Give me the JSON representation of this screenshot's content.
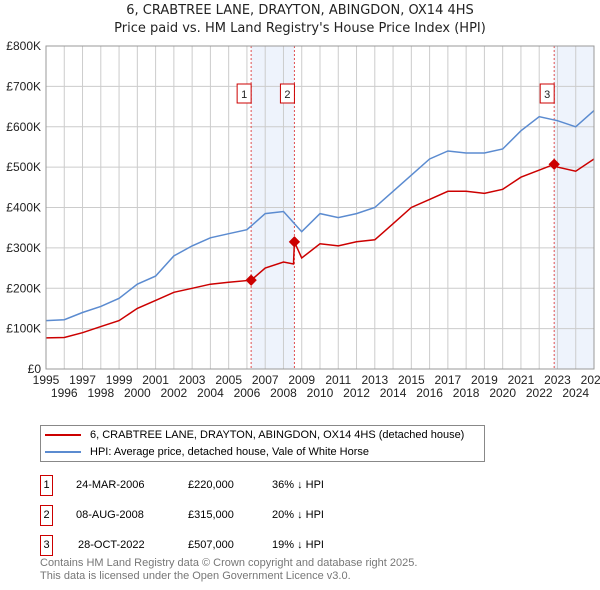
{
  "chart_data": {
    "type": "line",
    "title": "6, CRABTREE LANE, DRAYTON, ABINGDON, OX14 4HS",
    "subtitle": "Price paid vs. HM Land Registry's House Price Index (HPI)",
    "xlim": [
      1995,
      2025
    ],
    "ylim": [
      0,
      800000
    ],
    "xticks": [
      "1995",
      "1996",
      "1997",
      "1998",
      "1999",
      "2000",
      "2001",
      "2002",
      "2003",
      "2004",
      "2005",
      "2006",
      "2007",
      "2008",
      "2009",
      "2010",
      "2011",
      "2012",
      "2013",
      "2014",
      "2015",
      "2016",
      "2017",
      "2018",
      "2019",
      "2020",
      "2021",
      "2022",
      "2023",
      "2024",
      "2025"
    ],
    "yticks": [
      {
        "v": 0,
        "label": "£0"
      },
      {
        "v": 100000,
        "label": "£100K"
      },
      {
        "v": 200000,
        "label": "£200K"
      },
      {
        "v": 300000,
        "label": "£300K"
      },
      {
        "v": 400000,
        "label": "£400K"
      },
      {
        "v": 500000,
        "label": "£500K"
      },
      {
        "v": 600000,
        "label": "£600K"
      },
      {
        "v": 700000,
        "label": "£700K"
      },
      {
        "v": 800000,
        "label": "£800K"
      }
    ],
    "grid": true,
    "series": [
      {
        "name": "6, CRABTREE LANE, DRAYTON, ABINGDON, OX14 4HS (detached house)",
        "color": "#cc0000",
        "x": [
          1995,
          1996,
          1997,
          1998,
          1999,
          2000,
          2001,
          2002,
          2003,
          2004,
          2005,
          2006.23,
          2007,
          2008,
          2008.55,
          2008.6,
          2009,
          2010,
          2011,
          2012,
          2013,
          2014,
          2015,
          2016,
          2017,
          2018,
          2019,
          2020,
          2021,
          2022.82,
          2023,
          2024,
          2025
        ],
        "y": [
          77000,
          78000,
          90000,
          105000,
          120000,
          150000,
          170000,
          190000,
          200000,
          210000,
          215000,
          220000,
          250000,
          265000,
          260000,
          315000,
          275000,
          310000,
          305000,
          315000,
          320000,
          360000,
          400000,
          420000,
          440000,
          440000,
          435000,
          445000,
          475000,
          507000,
          500000,
          490000,
          520000
        ]
      },
      {
        "name": "HPI: Average price, detached house, Vale of White Horse",
        "color": "#5b8bd0",
        "x": [
          1995,
          1996,
          1997,
          1998,
          1999,
          2000,
          2001,
          2002,
          2003,
          2004,
          2005,
          2006,
          2007,
          2008,
          2008.8,
          2009,
          2010,
          2011,
          2012,
          2013,
          2014,
          2015,
          2016,
          2017,
          2018,
          2019,
          2020,
          2021,
          2022,
          2023,
          2024,
          2025
        ],
        "y": [
          120000,
          122000,
          140000,
          155000,
          175000,
          210000,
          230000,
          280000,
          305000,
          325000,
          335000,
          345000,
          385000,
          390000,
          350000,
          340000,
          385000,
          375000,
          385000,
          400000,
          440000,
          480000,
          520000,
          540000,
          535000,
          535000,
          545000,
          590000,
          625000,
          615000,
          600000,
          640000
        ]
      }
    ],
    "sales": [
      {
        "n": "1",
        "date": "24-MAR-2006",
        "x": 2006.23,
        "price": "£220,000",
        "value": 220000,
        "delta": "36% ↓ HPI"
      },
      {
        "n": "2",
        "date": "08-AUG-2008",
        "x": 2008.6,
        "price": "£315,000",
        "value": 315000,
        "delta": "20% ↓ HPI"
      },
      {
        "n": "3",
        "date": "28-OCT-2022",
        "x": 2022.82,
        "price": "£507,000",
        "value": 507000,
        "delta": "19% ↓ HPI"
      }
    ],
    "shaded": [
      [
        2006.23,
        2008.6
      ],
      [
        2022.82,
        2025
      ]
    ]
  },
  "footer": [
    "Contains HM Land Registry data © Crown copyright and database right 2025.",
    "This data is licensed under the Open Government Licence v3.0."
  ]
}
